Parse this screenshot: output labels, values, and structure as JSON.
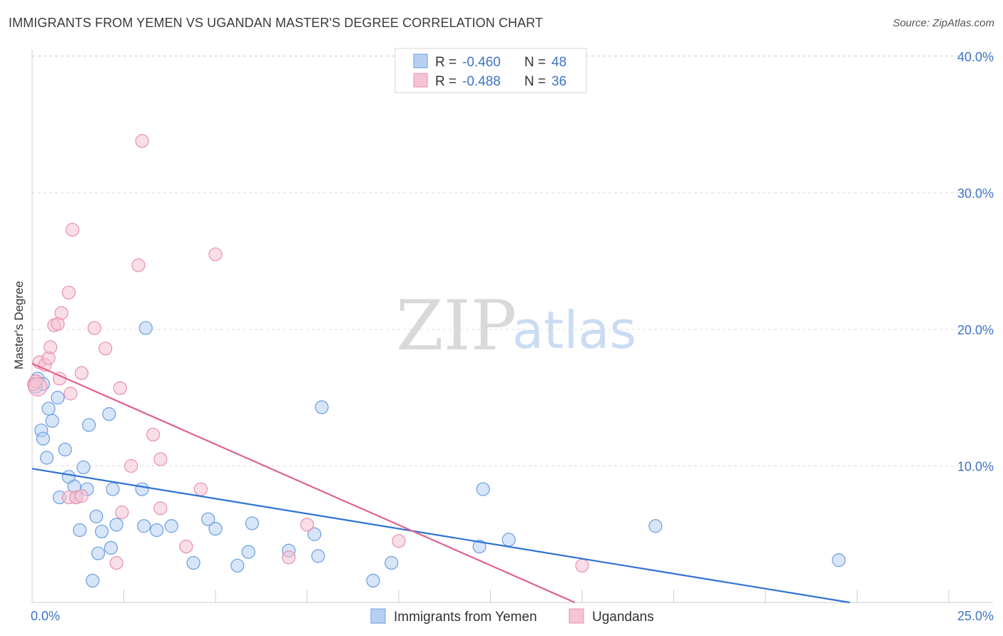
{
  "header": {
    "title": "IMMIGRANTS FROM YEMEN VS UGANDAN MASTER'S DEGREE CORRELATION CHART",
    "source": "Source: ZipAtlas.com"
  },
  "watermark": {
    "zip": "ZIP",
    "atlas": "atlas"
  },
  "chart_data": {
    "type": "scatter",
    "title": "IMMIGRANTS FROM YEMEN VS UGANDAN MASTER'S DEGREE CORRELATION CHART",
    "xlabel": "",
    "ylabel": "Master's Degree",
    "xlim": [
      0,
      25
    ],
    "ylim": [
      0,
      40
    ],
    "x_tick_labels": [
      "0.0%",
      "25.0%"
    ],
    "y_ticks": [
      10,
      20,
      30,
      40
    ],
    "y_tick_labels": [
      "10.0%",
      "20.0%",
      "30.0%",
      "40.0%"
    ],
    "grid": true,
    "legend_position": "top-center",
    "stats": [
      {
        "r_label": "R = ",
        "r": "-0.460",
        "n_label": "N = ",
        "n": "48"
      },
      {
        "r_label": "R = ",
        "r": "-0.488",
        "n_label": "N = ",
        "n": "36"
      }
    ],
    "series": [
      {
        "name": "Immigrants from Yemen",
        "color": "#6a9de0",
        "fill": "#b7d0f2",
        "line_color": "#2f72d3",
        "trend": {
          "x": [
            0,
            22.3
          ],
          "y": [
            9.8,
            0
          ]
        },
        "points": [
          [
            0.15,
            16.4
          ],
          [
            0.3,
            16.0
          ],
          [
            0.25,
            12.6
          ],
          [
            0.3,
            12.0
          ],
          [
            0.45,
            14.2
          ],
          [
            0.55,
            13.3
          ],
          [
            0.4,
            10.6
          ],
          [
            0.7,
            15.0
          ],
          [
            0.9,
            11.2
          ],
          [
            1.0,
            9.2
          ],
          [
            0.75,
            7.7
          ],
          [
            1.15,
            8.5
          ],
          [
            1.2,
            7.7
          ],
          [
            1.4,
            9.9
          ],
          [
            1.5,
            8.3
          ],
          [
            1.55,
            13.0
          ],
          [
            2.1,
            13.8
          ],
          [
            1.3,
            5.3
          ],
          [
            1.75,
            6.3
          ],
          [
            1.9,
            5.2
          ],
          [
            1.8,
            3.6
          ],
          [
            2.15,
            4.0
          ],
          [
            2.2,
            8.3
          ],
          [
            2.3,
            5.7
          ],
          [
            3.0,
            8.3
          ],
          [
            3.05,
            5.6
          ],
          [
            3.4,
            5.3
          ],
          [
            3.8,
            5.6
          ],
          [
            3.1,
            20.1
          ],
          [
            1.65,
            1.6
          ],
          [
            4.4,
            2.9
          ],
          [
            4.8,
            6.1
          ],
          [
            5.0,
            5.4
          ],
          [
            5.6,
            2.7
          ],
          [
            5.9,
            3.7
          ],
          [
            6.0,
            5.8
          ],
          [
            7.0,
            3.8
          ],
          [
            7.7,
            5.0
          ],
          [
            7.8,
            3.4
          ],
          [
            7.9,
            14.3
          ],
          [
            9.3,
            1.6
          ],
          [
            9.8,
            2.9
          ],
          [
            12.2,
            4.1
          ],
          [
            12.3,
            8.3
          ],
          [
            13.0,
            4.6
          ],
          [
            17.0,
            5.6
          ],
          [
            22.0,
            3.1
          ],
          [
            0.1,
            15.8
          ]
        ]
      },
      {
        "name": "Ugandans",
        "color": "#e890ac",
        "fill": "#f6c3d3",
        "line_color": "#e0628e",
        "trend": {
          "x": [
            0,
            14.8
          ],
          "y": [
            17.5,
            0
          ]
        },
        "points": [
          [
            0.05,
            16.0
          ],
          [
            0.2,
            17.6
          ],
          [
            0.35,
            17.4
          ],
          [
            0.45,
            17.9
          ],
          [
            0.5,
            18.7
          ],
          [
            0.6,
            20.3
          ],
          [
            0.7,
            20.4
          ],
          [
            0.8,
            21.2
          ],
          [
            1.0,
            22.7
          ],
          [
            1.1,
            27.3
          ],
          [
            0.75,
            16.4
          ],
          [
            1.05,
            15.3
          ],
          [
            1.35,
            16.8
          ],
          [
            1.7,
            20.1
          ],
          [
            2.0,
            18.6
          ],
          [
            2.4,
            15.7
          ],
          [
            3.0,
            33.8
          ],
          [
            2.9,
            24.7
          ],
          [
            5.0,
            25.5
          ],
          [
            3.3,
            12.3
          ],
          [
            2.7,
            10.0
          ],
          [
            3.5,
            10.5
          ],
          [
            1.0,
            7.7
          ],
          [
            1.2,
            7.7
          ],
          [
            1.35,
            7.8
          ],
          [
            2.45,
            6.6
          ],
          [
            3.5,
            6.9
          ],
          [
            4.2,
            4.1
          ],
          [
            4.6,
            8.3
          ],
          [
            7.5,
            5.7
          ],
          [
            10.0,
            4.5
          ],
          [
            7.0,
            3.3
          ],
          [
            2.3,
            2.9
          ],
          [
            15.0,
            2.7
          ],
          [
            0.1,
            16.2
          ],
          [
            0.15,
            15.8
          ]
        ]
      }
    ]
  }
}
